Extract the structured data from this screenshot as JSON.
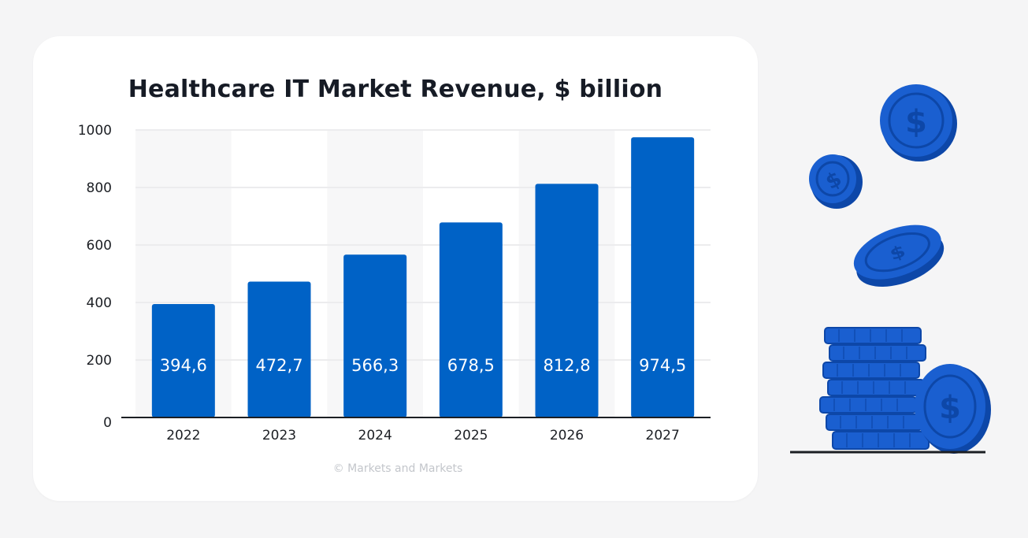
{
  "chart_data": {
    "type": "bar",
    "title": "Healthcare IT Market Revenue, $ billion",
    "categories": [
      "2022",
      "2023",
      "2024",
      "2025",
      "2026",
      "2027"
    ],
    "values": [
      394.6,
      472.7,
      566.3,
      678.5,
      812.8,
      974.5
    ],
    "data_labels": [
      "394,6",
      "472,7",
      "566,3",
      "678,5",
      "812,8",
      "974,5"
    ],
    "yticks": [
      "0",
      "200",
      "400",
      "600",
      "800",
      "1000"
    ],
    "ytick_values": [
      0,
      200,
      400,
      600,
      800,
      1000
    ],
    "ylim": [
      0,
      1000
    ],
    "grid": true,
    "legend": "none"
  },
  "source_text": "© Markets and Markets",
  "colors": {
    "bar": "#0062c6",
    "column_band": "#f7f7f8",
    "grid": "#ececee",
    "axis": "#1c1f24",
    "coin": "#1a5fd0",
    "coin_dark": "#0d47a8",
    "page_bg": "#f5f5f6"
  },
  "decoration": {
    "icon": "dollar-coins-icon"
  }
}
